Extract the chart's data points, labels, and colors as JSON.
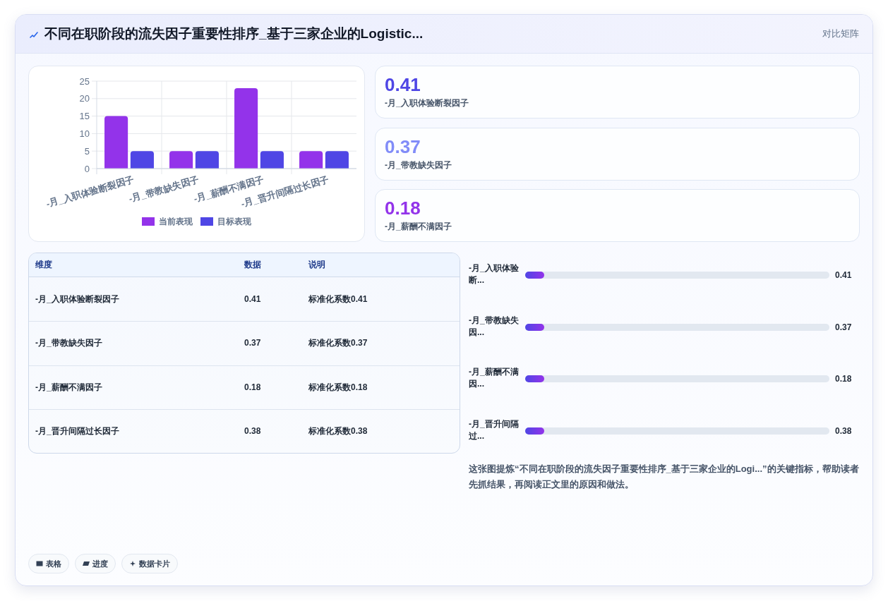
{
  "chart_data": [
    {
      "type": "other",
      "title": "不同在职阶段的流失因子重要性排序_基于三家企业的Logistic...",
      "subtitle": "对比矩阵"
    },
    {
      "type": "bar",
      "categories": [
        "-月_入职体验断裂因子",
        "-月_带教缺失因子",
        "-月_薪酬不满因子",
        "-月_晋升间隔过长因子"
      ],
      "series": [
        {
          "name": "当前表现",
          "color": "#9333ea",
          "values": [
            15,
            5,
            23,
            5
          ]
        },
        {
          "name": "目标表现",
          "color": "#4f46e5",
          "values": [
            5,
            5,
            5,
            5
          ]
        }
      ],
      "ylim": [
        0,
        25
      ],
      "yticks": [
        0,
        5,
        10,
        15,
        20,
        25
      ],
      "grid": true,
      "legend": "bottom"
    },
    {
      "type": "other",
      "categories": [
        "-月_入职体验断裂因子",
        "-月_带教缺失因子",
        "-月_薪酬不满因子"
      ],
      "values": [
        0.41,
        0.37,
        0.18
      ],
      "data_labels": true
    },
    {
      "type": "other",
      "categories": [
        "-月_入职体验断裂因子",
        "-月_带教缺失因子",
        "-月_薪酬不满因子",
        "-月_晋升间隔过长因子"
      ],
      "values": [
        0.41,
        0.37,
        0.18,
        0.38
      ],
      "data_labels": true,
      "annotations": [
        "维度",
        "数据",
        "说明",
        "标准化系数0.41",
        "标准化系数0.37",
        "标准化系数0.18",
        "标准化系数0.38"
      ]
    },
    {
      "type": "other",
      "categories": [
        "-月_入职体验断...",
        "-月_带教缺失因...",
        "-月_薪酬不满因...",
        "-月_晋升间隔过..."
      ],
      "values": [
        0.41,
        0.37,
        0.18,
        0.38
      ],
      "data_labels": true
    },
    {
      "type": "other",
      "annotations": [
        "这张图提炼“不同在职阶段的流失因子重要性排序_基于三家企业的Logi...”的关键指标，帮助读者先抓结果，再阅读正文里的原因和做法。",
        "表格",
        "进度",
        "数据卡片"
      ]
    }
  ]
}
